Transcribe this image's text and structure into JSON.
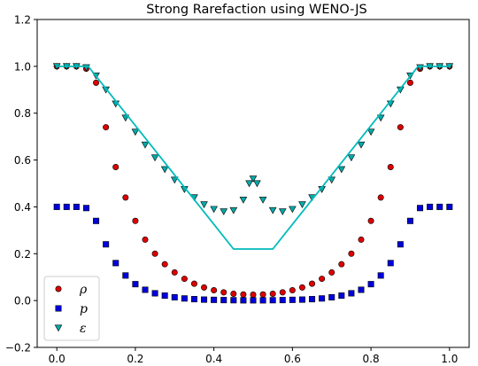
{
  "chart_data": {
    "type": "line",
    "title": "Strong Rarefaction using WENO-JS",
    "xlabel": "",
    "ylabel": "",
    "xlim": [
      -0.05,
      1.05
    ],
    "ylim": [
      -0.2,
      1.2
    ],
    "xticks": [
      0.0,
      0.2,
      0.4,
      0.6,
      0.8,
      1.0
    ],
    "yticks": [
      -0.2,
      0.0,
      0.2,
      0.4,
      0.6,
      0.8,
      1.0,
      1.2
    ],
    "xtick_labels": [
      "0.0",
      "0.2",
      "0.4",
      "0.6",
      "0.8",
      "1.0"
    ],
    "ytick_labels": [
      "−0.2",
      "0.0",
      "0.2",
      "0.4",
      "0.6",
      "0.8",
      "1.0",
      "1.2"
    ],
    "legend_position": "lower-left",
    "grid": false,
    "series": [
      {
        "name": "ρ",
        "kind": "markers",
        "marker": "circle",
        "color": "#dd0000",
        "x": [
          0.0,
          0.025,
          0.05,
          0.075,
          0.1,
          0.125,
          0.15,
          0.175,
          0.2,
          0.225,
          0.25,
          0.275,
          0.3,
          0.325,
          0.35,
          0.375,
          0.4,
          0.425,
          0.45,
          0.475,
          0.5,
          0.525,
          0.55,
          0.575,
          0.6,
          0.625,
          0.65,
          0.675,
          0.7,
          0.725,
          0.75,
          0.775,
          0.8,
          0.825,
          0.85,
          0.875,
          0.9,
          0.925,
          0.95,
          0.975,
          1.0
        ],
        "y": [
          1.0,
          1.0,
          1.0,
          0.99,
          0.93,
          0.74,
          0.57,
          0.44,
          0.34,
          0.26,
          0.2,
          0.155,
          0.12,
          0.093,
          0.072,
          0.056,
          0.044,
          0.035,
          0.029,
          0.026,
          0.025,
          0.026,
          0.029,
          0.035,
          0.044,
          0.056,
          0.072,
          0.093,
          0.12,
          0.155,
          0.2,
          0.26,
          0.34,
          0.44,
          0.57,
          0.74,
          0.93,
          0.99,
          1.0,
          1.0,
          1.0
        ]
      },
      {
        "name": "p",
        "kind": "markers",
        "marker": "square",
        "color": "#0000dd",
        "x": [
          0.0,
          0.025,
          0.05,
          0.075,
          0.1,
          0.125,
          0.15,
          0.175,
          0.2,
          0.225,
          0.25,
          0.275,
          0.3,
          0.325,
          0.35,
          0.375,
          0.4,
          0.425,
          0.45,
          0.475,
          0.5,
          0.525,
          0.55,
          0.575,
          0.6,
          0.625,
          0.65,
          0.675,
          0.7,
          0.725,
          0.75,
          0.775,
          0.8,
          0.825,
          0.85,
          0.875,
          0.9,
          0.925,
          0.95,
          0.975,
          1.0
        ],
        "y": [
          0.4,
          0.4,
          0.4,
          0.395,
          0.34,
          0.24,
          0.16,
          0.107,
          0.07,
          0.046,
          0.031,
          0.021,
          0.014,
          0.009,
          0.006,
          0.004,
          0.003,
          0.002,
          0.0015,
          0.001,
          0.001,
          0.001,
          0.0015,
          0.002,
          0.003,
          0.004,
          0.006,
          0.009,
          0.014,
          0.021,
          0.031,
          0.046,
          0.07,
          0.107,
          0.16,
          0.24,
          0.34,
          0.395,
          0.4,
          0.4,
          0.4
        ]
      },
      {
        "name": "ε",
        "kind": "markers",
        "marker": "triangle-down",
        "color": "#00aaaa",
        "x": [
          0.0,
          0.025,
          0.05,
          0.075,
          0.1,
          0.125,
          0.15,
          0.175,
          0.2,
          0.225,
          0.25,
          0.275,
          0.3,
          0.325,
          0.35,
          0.375,
          0.4,
          0.425,
          0.45,
          0.475,
          0.49,
          0.5,
          0.51,
          0.525,
          0.55,
          0.575,
          0.6,
          0.625,
          0.65,
          0.675,
          0.7,
          0.725,
          0.75,
          0.775,
          0.8,
          0.825,
          0.85,
          0.875,
          0.9,
          0.925,
          0.95,
          0.975,
          1.0
        ],
        "y": [
          1.0,
          1.0,
          1.0,
          0.995,
          0.96,
          0.9,
          0.84,
          0.78,
          0.72,
          0.665,
          0.61,
          0.56,
          0.515,
          0.475,
          0.44,
          0.41,
          0.39,
          0.38,
          0.385,
          0.43,
          0.5,
          0.52,
          0.5,
          0.43,
          0.385,
          0.38,
          0.39,
          0.41,
          0.44,
          0.475,
          0.515,
          0.56,
          0.61,
          0.665,
          0.72,
          0.78,
          0.84,
          0.9,
          0.96,
          0.995,
          1.0,
          1.0,
          1.0
        ]
      },
      {
        "name": "",
        "kind": "line",
        "color": "#00bbbb",
        "x": [
          0.0,
          0.08,
          0.45,
          0.55,
          0.92,
          1.0
        ],
        "y": [
          1.0,
          1.0,
          0.22,
          0.22,
          1.0,
          1.0
        ]
      }
    ]
  }
}
